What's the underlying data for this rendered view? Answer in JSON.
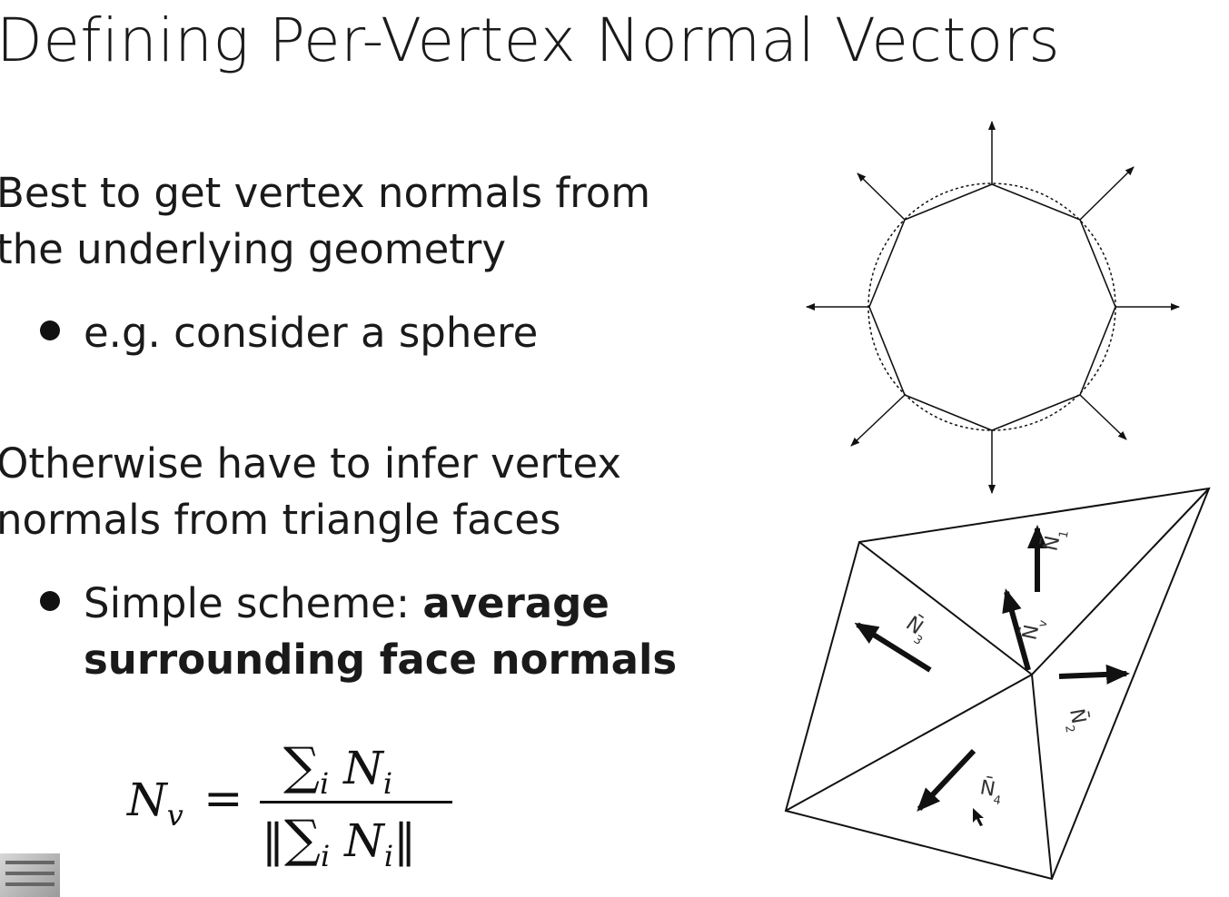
{
  "slide": {
    "title": "Defining Per-Vertex Normal Vectors",
    "para1_line1": "Best to get vertex normals from",
    "para1_line2": "the underlying geometry",
    "bullet1": "e.g. consider a sphere",
    "para2_line1": "Otherwise have to infer vertex",
    "para2_line2": "normals from triangle faces",
    "bullet2_prefix": "Simple scheme: ",
    "bullet2_bold1": "average",
    "bullet2_bold2": "surrounding face normals"
  },
  "formula": {
    "lhs": "N",
    "lhs_sub": "v",
    "equals": "=",
    "num_sigma": "∑",
    "num_sigma_sub": "i",
    "num_term": " N",
    "num_term_sub": "i",
    "den_left": "‖",
    "den_sigma": "∑",
    "den_sigma_sub": "i",
    "den_term": " N",
    "den_term_sub": "i",
    "den_right": "‖"
  },
  "mesh_diagram": {
    "labels": {
      "n1": "N̄",
      "n1_sub": "1",
      "n2": "N̄",
      "n2_sub": "2",
      "n3": "N̄",
      "n3_sub": "3",
      "n4": "N̄",
      "n4_sub": "4",
      "nv": "N̄",
      "nv_sub": "v"
    }
  }
}
